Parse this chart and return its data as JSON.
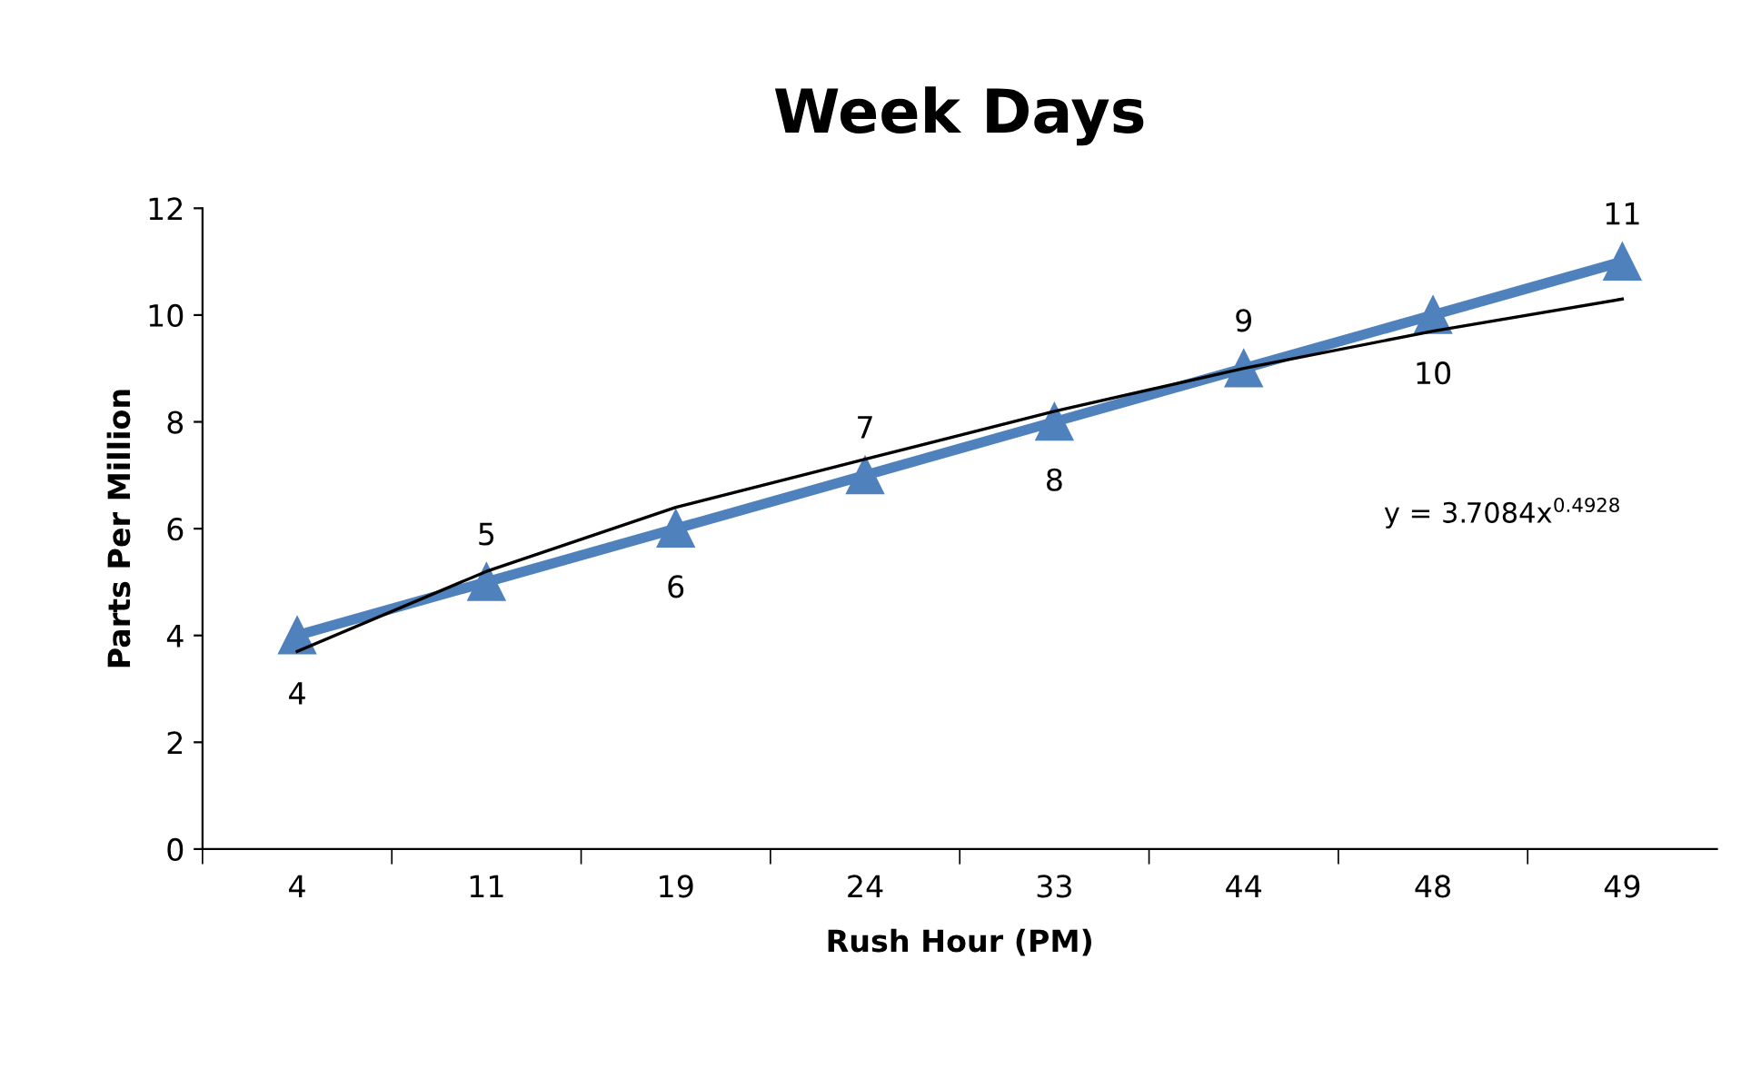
{
  "chart_data": {
    "type": "line",
    "title": "Week Days",
    "xlabel": "Rush Hour (PM)",
    "ylabel": "Parts Per Million",
    "categories": [
      "4",
      "11",
      "19",
      "24",
      "33",
      "44",
      "48",
      "49"
    ],
    "series": [
      {
        "color": "#4f81bd",
        "values": [
          4,
          5,
          6,
          7,
          8,
          9,
          10,
          11
        ],
        "marker": "triangle",
        "data_labels": true
      },
      {
        "type": "line",
        "color": "#000000",
        "values": [
          3.7,
          5.2,
          6.4,
          7.3,
          8.2,
          9.0,
          9.7,
          10.3
        ],
        "marker": "none"
      }
    ],
    "annotations": [
      "y = 3.7084x$^{0.4928}$"
    ],
    "ylim": [
      0,
      12
    ],
    "yticks": [
      0,
      2,
      4,
      6,
      8,
      10,
      12
    ],
    "grid": false,
    "legend": false
  }
}
